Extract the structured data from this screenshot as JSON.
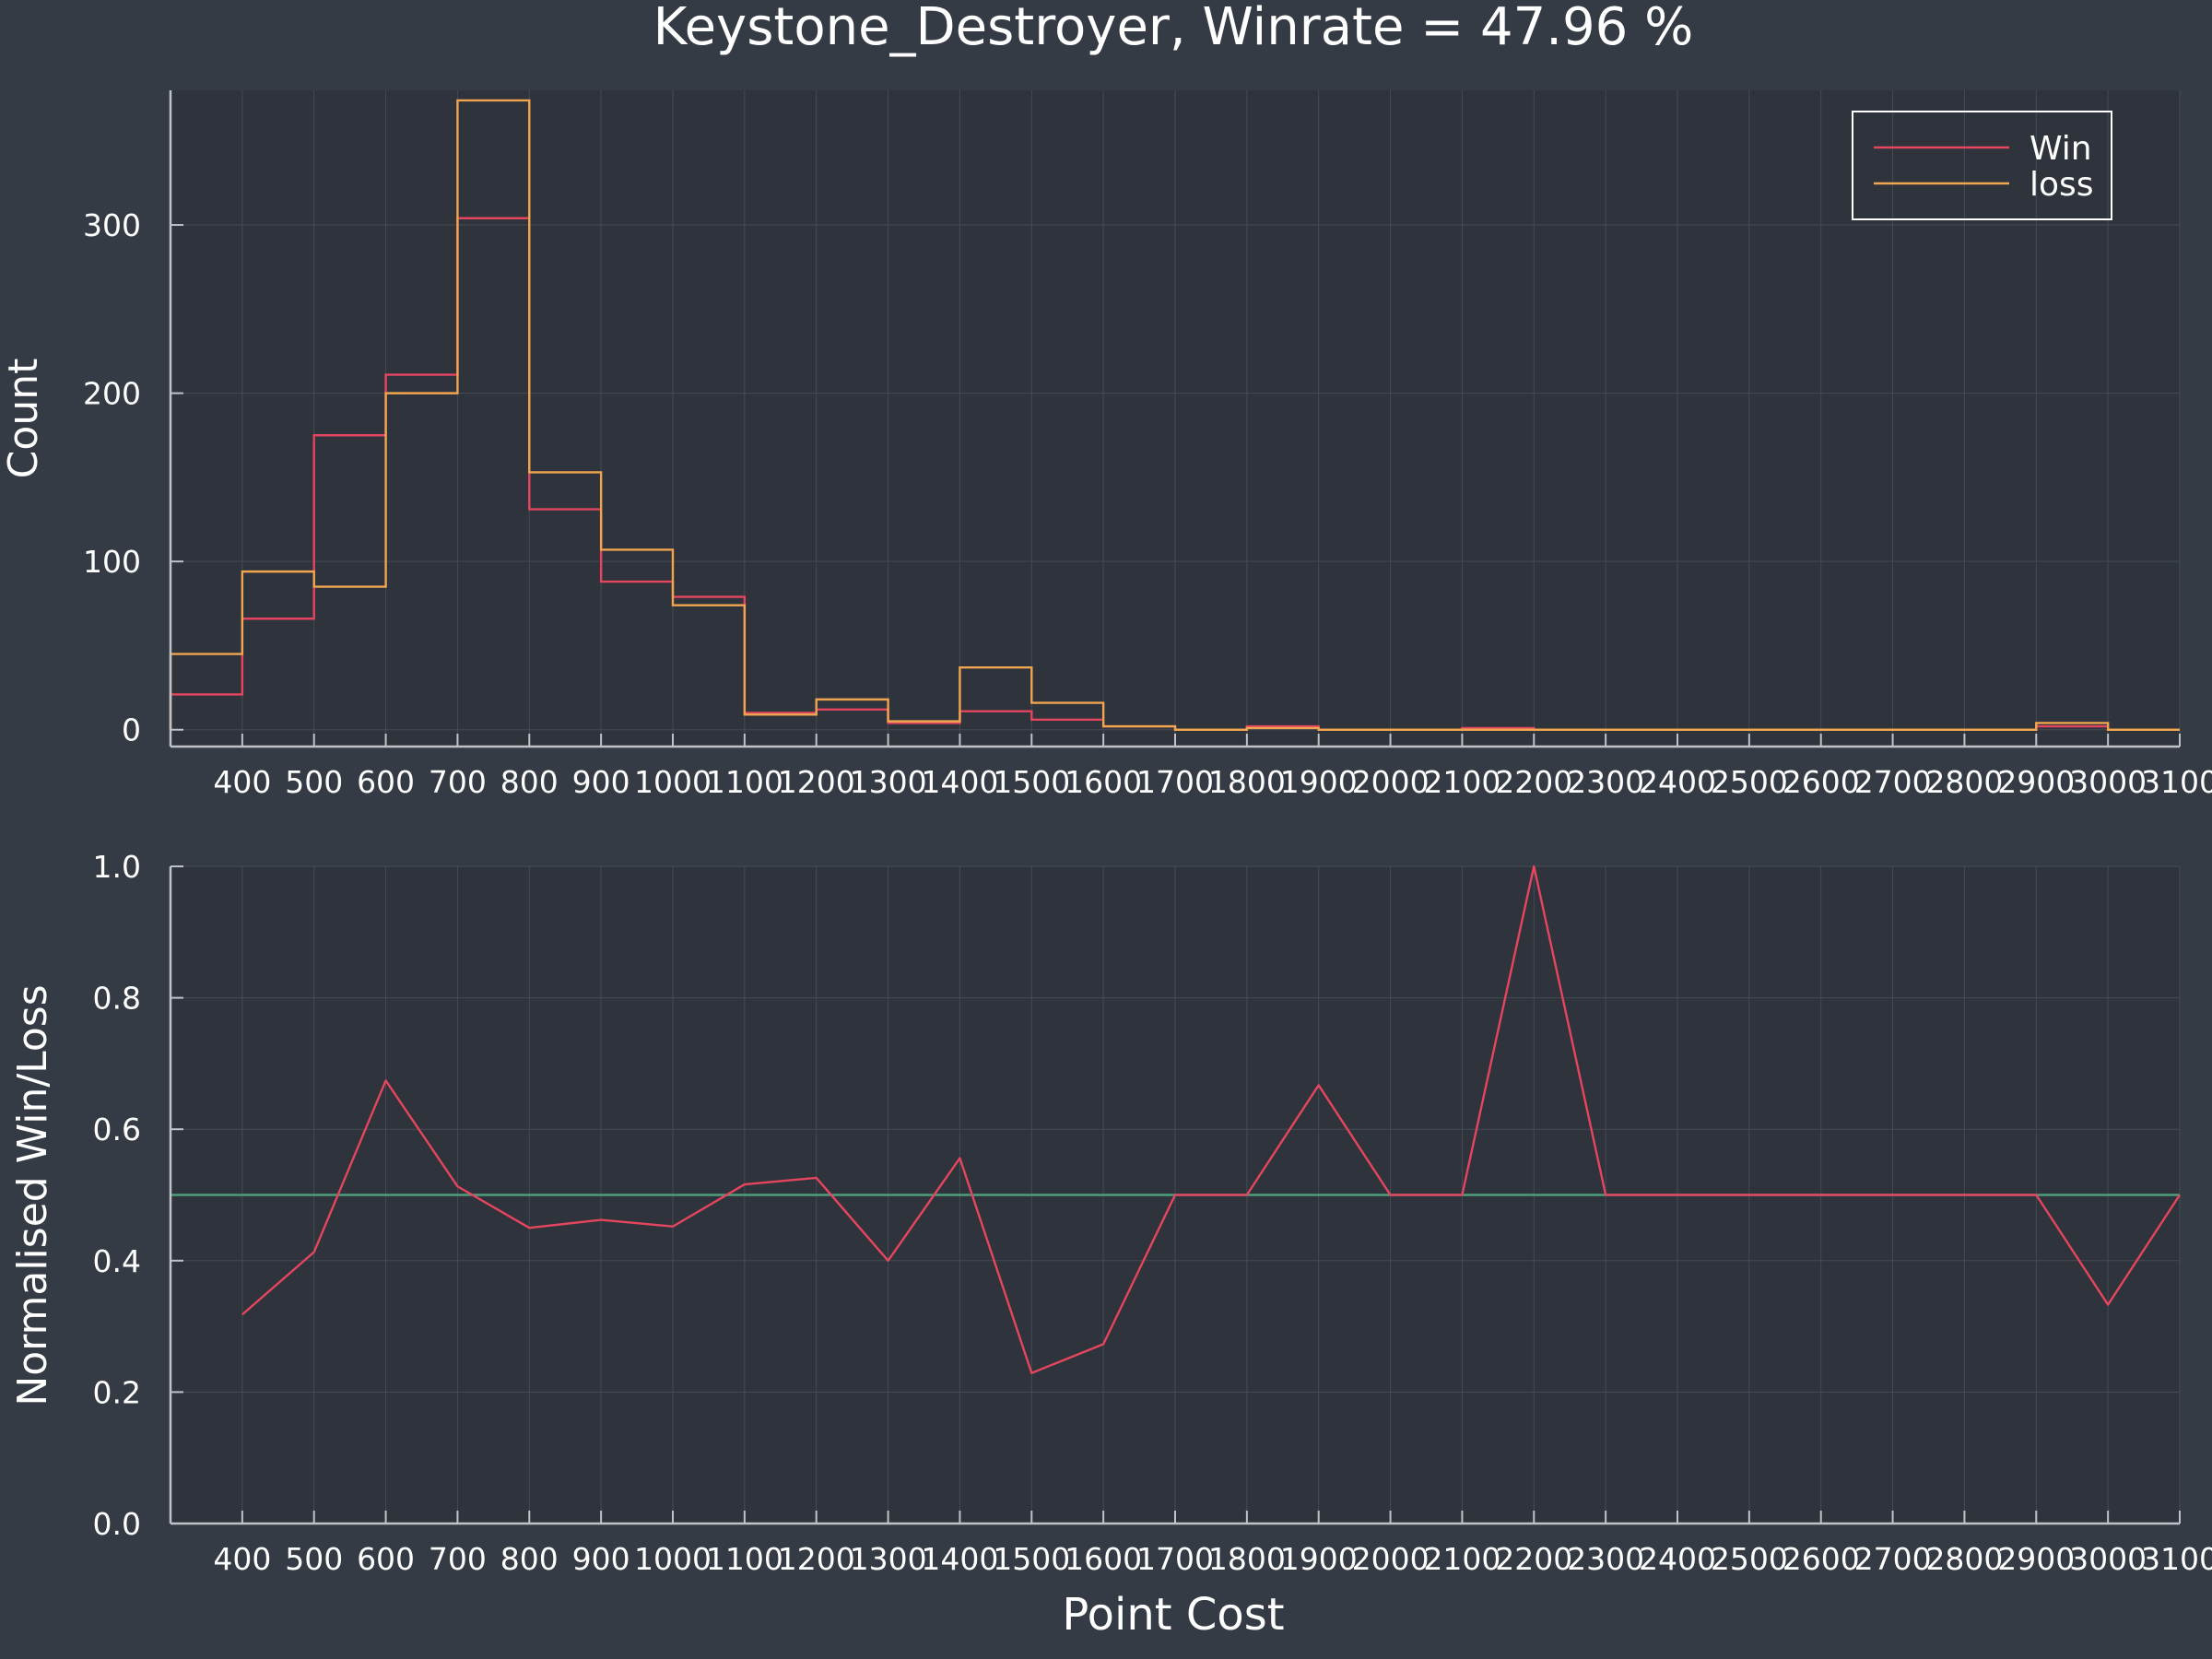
{
  "title": "Keystone_Destroyer, Winrate = 47.96 %",
  "colors": {
    "background": "#353b45",
    "plot_bg": "#2f333b",
    "axis": "#bfc3c9",
    "grid": "#454b55",
    "text": "#ffffff",
    "win": "#e4455f",
    "loss": "#f0a550",
    "baseline": "#4d9f7c"
  },
  "chart_data": [
    {
      "type": "histogram",
      "ylabel": "Count",
      "xlabel": "",
      "xlim": [
        300,
        3100
      ],
      "ylim": [
        -10,
        380
      ],
      "grid": true,
      "legend": "top-right",
      "x_ticks": [
        400,
        500,
        600,
        700,
        800,
        900,
        1000,
        1100,
        1200,
        1300,
        1400,
        1500,
        1600,
        1700,
        1800,
        1900,
        2000,
        2100,
        2200,
        2300,
        2400,
        2500,
        2600,
        2700,
        2800,
        2900,
        3000,
        3100
      ],
      "y_ticks": [
        0,
        100,
        200,
        300
      ],
      "bin_edges": [
        300,
        400,
        500,
        600,
        700,
        800,
        900,
        1000,
        1100,
        1200,
        1300,
        1400,
        1500,
        1600,
        1700,
        1800,
        1900,
        2000,
        2100,
        2200,
        2300,
        2400,
        2500,
        2600,
        2700,
        2800,
        2900,
        3000,
        3100
      ],
      "series": [
        {
          "name": "Win",
          "color": "#e4455f",
          "values": [
            21,
            66,
            175,
            211,
            304,
            131,
            88,
            79,
            10,
            12,
            4,
            11,
            6,
            2,
            0,
            2,
            0,
            0,
            1,
            0,
            0,
            0,
            0,
            0,
            0,
            0,
            2,
            0
          ]
        },
        {
          "name": "loss",
          "color": "#f0a550",
          "values": [
            45,
            94,
            85,
            200,
            374,
            153,
            107,
            74,
            9,
            18,
            5,
            37,
            16,
            2,
            0,
            1,
            0,
            0,
            0,
            0,
            0,
            0,
            0,
            0,
            0,
            0,
            4,
            0
          ]
        }
      ]
    },
    {
      "type": "line",
      "ylabel": "Normalised Win/Loss",
      "xlabel": "Point Cost",
      "xlim": [
        300,
        3100
      ],
      "ylim": [
        0,
        1
      ],
      "grid": true,
      "x_ticks": [
        400,
        500,
        600,
        700,
        800,
        900,
        1000,
        1100,
        1200,
        1300,
        1400,
        1500,
        1600,
        1700,
        1800,
        1900,
        2000,
        2100,
        2200,
        2300,
        2400,
        2500,
        2600,
        2700,
        2800,
        2900,
        3000,
        3100
      ],
      "y_ticks": [
        "0.0",
        "0.2",
        "0.4",
        "0.6",
        "0.8",
        "1.0"
      ],
      "series": [
        {
          "color": "#e4455f",
          "x": [
            400,
            500,
            600,
            700,
            800,
            900,
            1000,
            1100,
            1200,
            1300,
            1400,
            1500,
            1600,
            1700,
            1800,
            1900,
            2000,
            2100,
            2200,
            2300,
            2400,
            2500,
            2600,
            2700,
            2800,
            2900,
            3000,
            3100
          ],
          "y": [
            0.318,
            0.413,
            0.674,
            0.513,
            0.45,
            0.462,
            0.452,
            0.516,
            0.526,
            0.4,
            0.556,
            0.229,
            0.273,
            0.5,
            0.5,
            0.667,
            0.5,
            0.5,
            1.0,
            0.5,
            0.5,
            0.5,
            0.5,
            0.5,
            0.5,
            0.5,
            0.333,
            0.5
          ]
        },
        {
          "color": "#4d9f7c",
          "x": [
            300,
            3100
          ],
          "y": [
            0.5,
            0.5
          ]
        }
      ]
    }
  ]
}
